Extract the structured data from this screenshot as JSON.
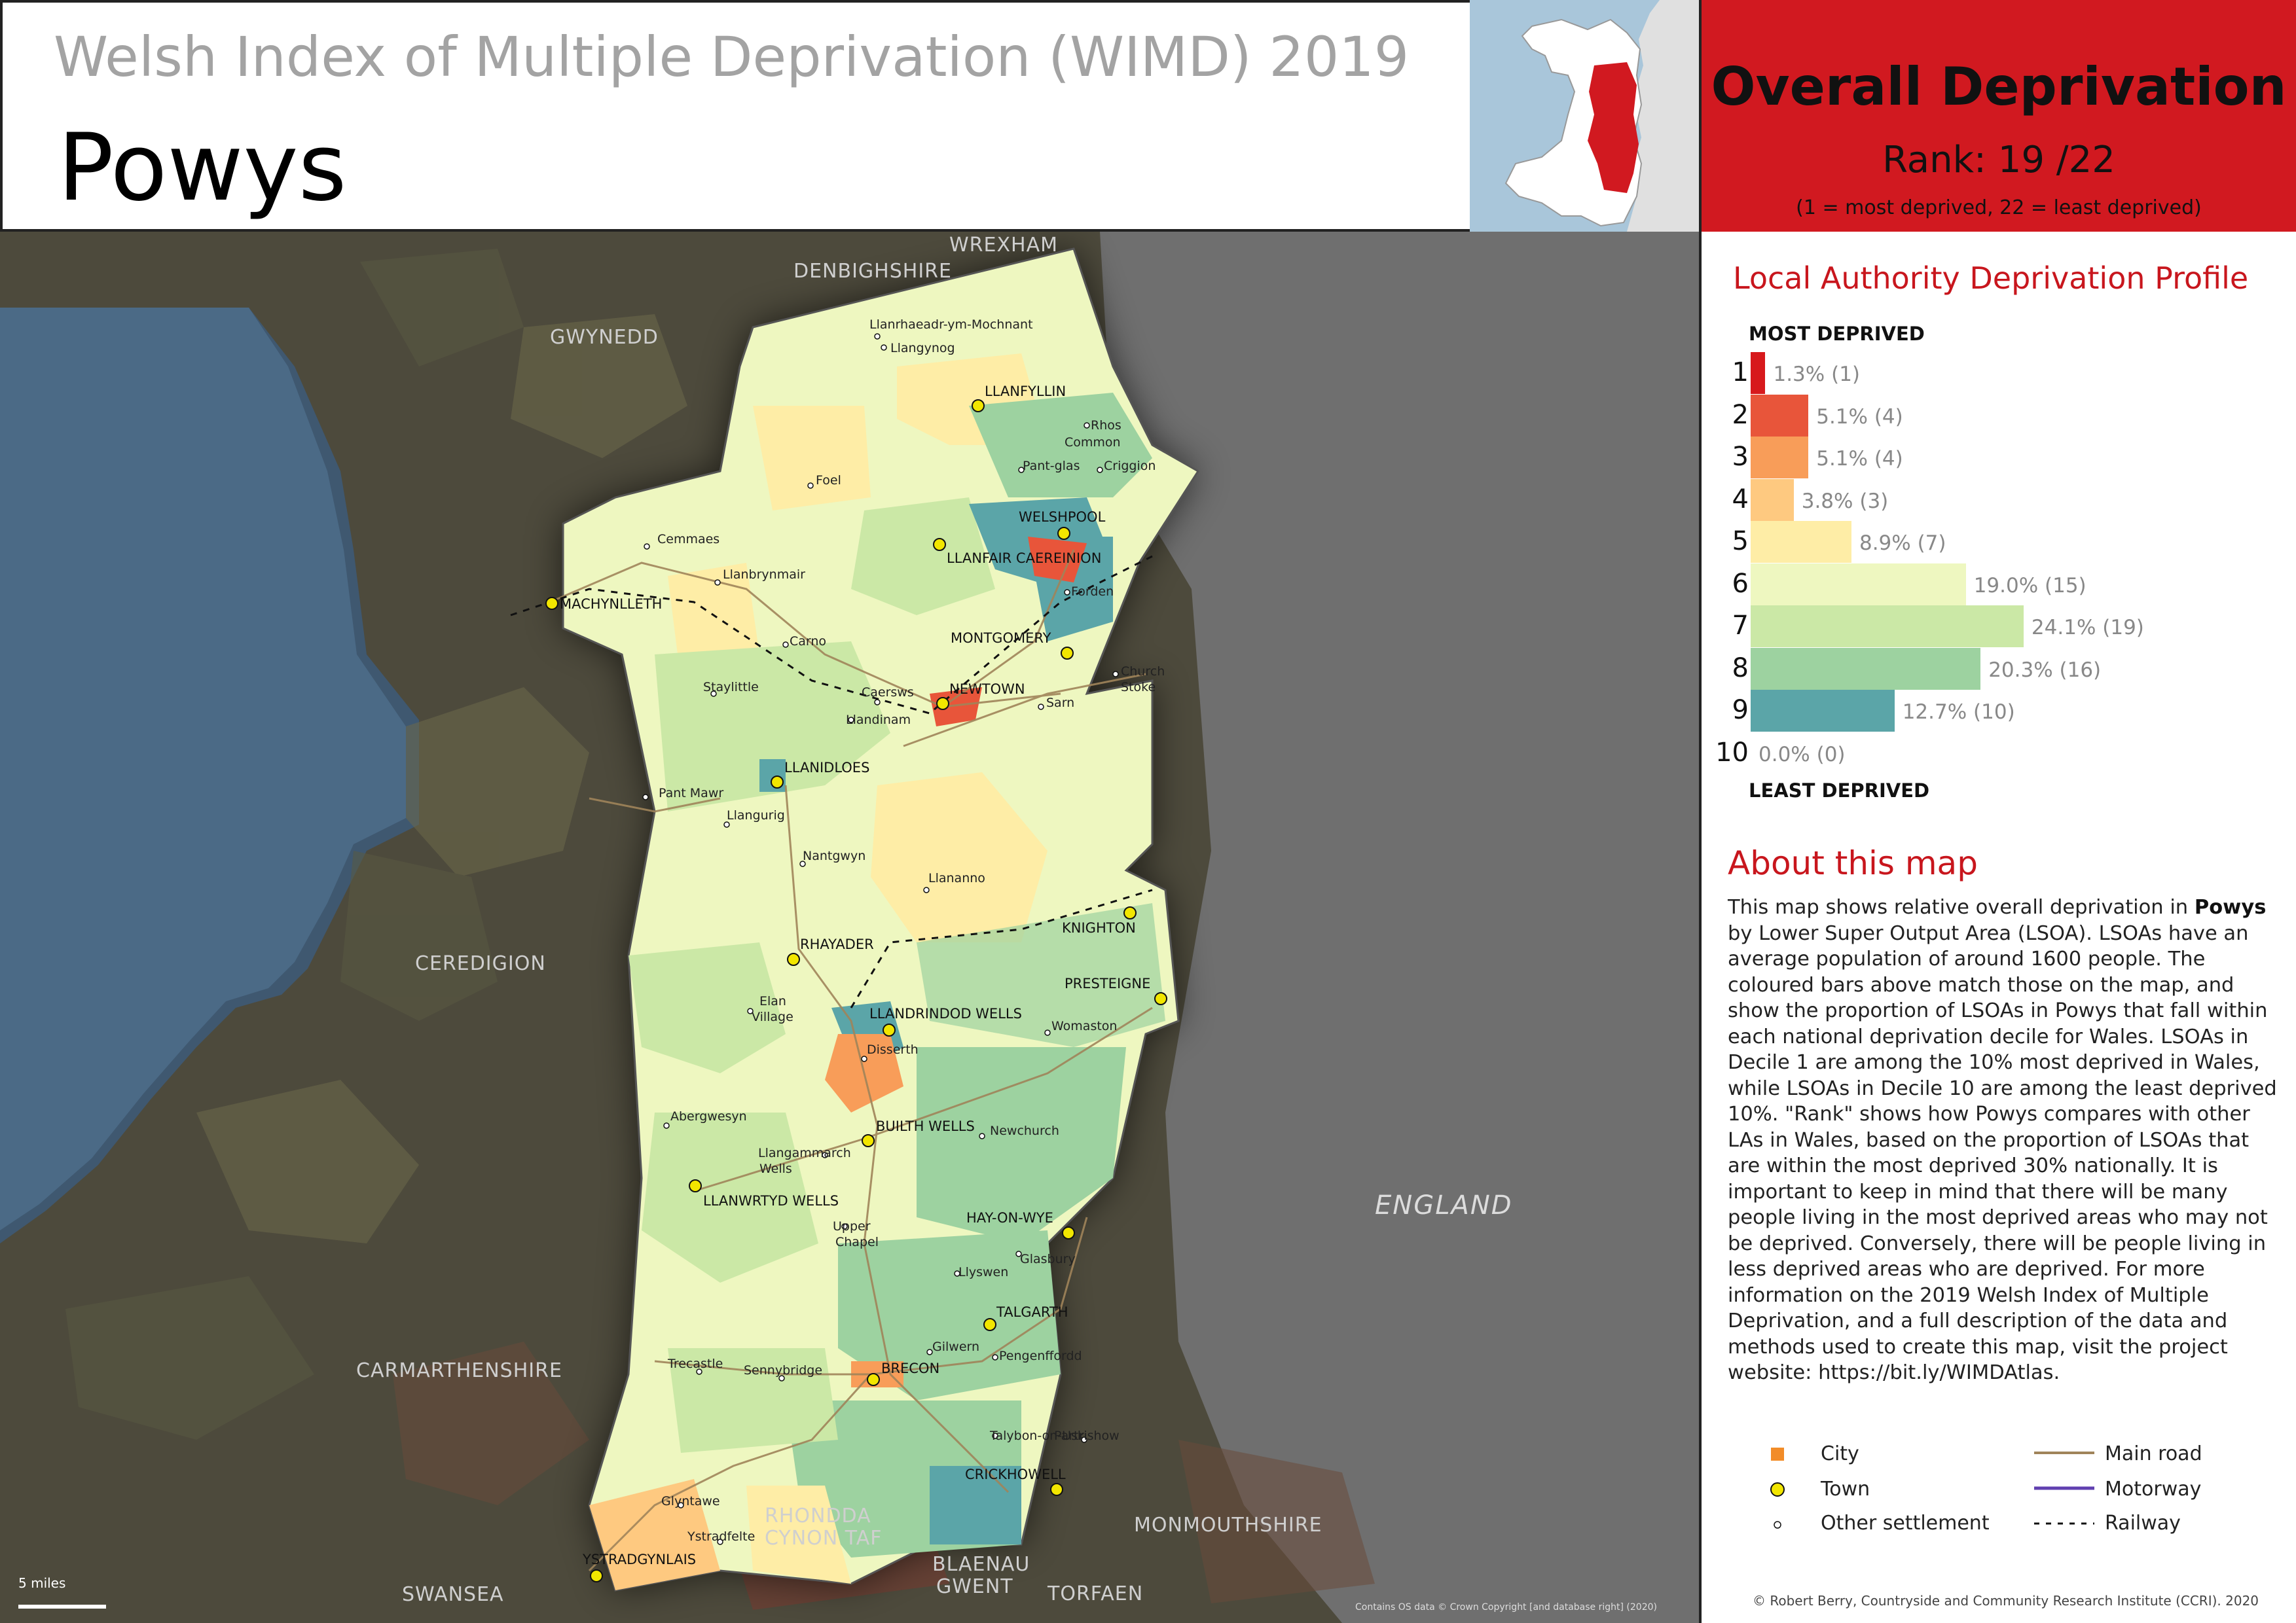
{
  "header": {
    "subtitle": "Welsh Index of Multiple Deprivation (WIMD) 2019",
    "title": "Powys"
  },
  "summary": {
    "heading": "Overall Deprivation",
    "rank": "Rank: 19 /22",
    "rank_note": "(1 =   most deprived, 22 = least deprived)"
  },
  "profile": {
    "heading": "Local Authority Deprivation Profile",
    "most_label": "MOST DEPRIVED",
    "least_label": "LEAST DEPRIVED",
    "deciles": [
      {
        "decile": "1",
        "percent": 1.3,
        "label": "1.3% (1)",
        "color": "#d7191c"
      },
      {
        "decile": "2",
        "percent": 5.1,
        "label": "5.1% (4)",
        "color": "#e8553a"
      },
      {
        "decile": "3",
        "percent": 5.1,
        "label": "5.1% (4)",
        "color": "#f89d59"
      },
      {
        "decile": "4",
        "percent": 3.8,
        "label": "3.8% (3)",
        "color": "#fec980"
      },
      {
        "decile": "5",
        "percent": 8.9,
        "label": "8.9% (7)",
        "color": "#feeda6"
      },
      {
        "decile": "6",
        "percent": 19.0,
        "label": "19.0% (15)",
        "color": "#eef7c0"
      },
      {
        "decile": "7",
        "percent": 24.1,
        "label": "24.1% (19)",
        "color": "#cbe8a6"
      },
      {
        "decile": "8",
        "percent": 20.3,
        "label": "20.3% (16)",
        "color": "#9dd2a0"
      },
      {
        "decile": "9",
        "percent": 12.7,
        "label": "12.7% (10)",
        "color": "#5ba5a8"
      },
      {
        "decile": "10",
        "percent": 0.0,
        "label": "0.0% (0)",
        "color": "#2b83ba"
      }
    ]
  },
  "about": {
    "heading": "About this map",
    "text_before": "This map shows relative overall deprivation in ",
    "text_bold": "Powys",
    "text_after": " by Lower Super Output Area (LSOA). LSOAs have an average population of around 1600 people. The coloured bars above match those on the map, and show the proportion of LSOAs in Powys that fall within each national deprivation decile for Wales. LSOAs in Decile 1 are among the 10% most deprived in Wales, while LSOAs in Decile 10 are among the least deprived 10%. \"Rank\" shows how Powys compares with other LAs in Wales, based on the proportion of LSOAs that are within the most deprived 30% nationally. It is important to keep in mind that there will be many people living in the most deprived areas who may not be deprived. Conversely, there will be people living in less deprived areas who are deprived. For more information on the 2019 Welsh Index of Multiple Deprivation, and a full description of the data and methods used to create this map, visit the project website: https://bit.ly/WIMDAtlas."
  },
  "legend": {
    "city": "City",
    "town": "Town",
    "other": "Other settlement",
    "main_road": "Main road",
    "motorway": "Motorway",
    "railway": "Railway",
    "colors": {
      "city": "#f28c28",
      "town": "#f2e600",
      "main_road": "#a0845a",
      "motorway": "#6040b0"
    }
  },
  "map": {
    "neighbours": [
      "WREXHAM",
      "DENBIGHSHIRE",
      "GWYNEDD",
      "CEREDIGION",
      "CARMARTHENSHIRE",
      "ENGLAND",
      "MONMOUTHSHIRE",
      "RHONDDA",
      "CYNON TAF",
      "BLAENAU",
      "GWENT",
      "TORFAEN",
      "SWANSEA"
    ],
    "towns": [
      "LLANFYLLIN",
      "WELSHPOOL",
      "LLANFAIR CAEREINION",
      "MONTGOMERY",
      "NEWTOWN",
      "MACHYNLLETH",
      "LLANIDLOES",
      "RHAYADER",
      "KNIGHTON",
      "PRESTEIGNE",
      "LLANDRINDOD WELLS",
      "BUILTH WELLS",
      "LLANWRTYD WELLS",
      "HAY-ON-WYE",
      "TALGARTH",
      "BRECON",
      "CRICKHOWELL",
      "YSTRADGYNLAIS"
    ],
    "settlements": [
      "Llanrhaeadr-ym-Mochnant",
      "Llangynog",
      "Rhos",
      "Common",
      "Pant-glas",
      "Criggion",
      "Foel",
      "Cemmaes",
      "Llanbrynmair",
      "Forden",
      "Carno",
      "Church",
      "Stoke",
      "Staylittle",
      "Caersws",
      "Llandinam",
      "Sarn",
      "Pant Mawr",
      "Llangurig",
      "Nantgwyn",
      "Llananno",
      "Elan",
      "Village",
      "Disserth",
      "Womaston",
      "Abergwesyn",
      "Newchurch",
      "Llangammarch",
      "Wells",
      "Upper",
      "Chapel",
      "Llyswen",
      "Glasbury",
      "Gilwern",
      "Pengenffordd",
      "Trecastle",
      "Sennybridge",
      "Talybon-on-Usk",
      "Partrishow",
      "Glyntawe",
      "Ystradfelte"
    ],
    "other_label": "ENGLAND",
    "scale": "5 miles"
  },
  "credits": {
    "os": "Contains OS data © Crown Copyright [and database right] (2020)",
    "author": "© Robert Berry, Countryside and Community Research Institute (CCRI). 2020"
  }
}
